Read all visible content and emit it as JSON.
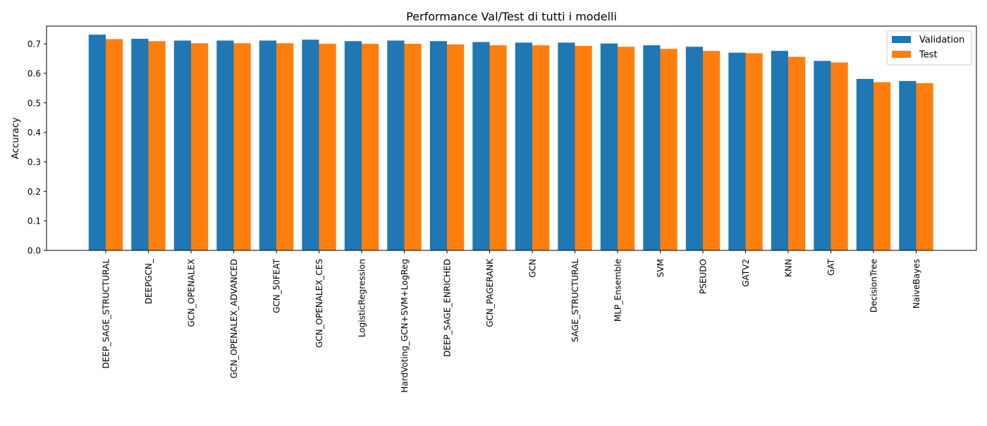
{
  "chart_data": {
    "type": "bar",
    "title": "Performance Val/Test di tutti i modelli",
    "xlabel": "",
    "ylabel": "Accuracy",
    "ylim": [
      0,
      0.76
    ],
    "yticks": [
      "0.0",
      "0.1",
      "0.2",
      "0.3",
      "0.4",
      "0.5",
      "0.6",
      "0.7"
    ],
    "grid": false,
    "legend_position": "top-right",
    "categories": [
      "DEEP_SAGE_STRUCTURAL",
      "DEEPGCN_",
      "GCN_OPENALEX",
      "GCN_OPENALEX_ADVANCED",
      "GCN_50FEAT",
      "GCN_OPENALEX_CES",
      "LogisticRegression",
      "HardVoting_GCN+SVM+LogReg",
      "DEEP_SAGE_ENRICHED",
      "GCN_PAGERANK",
      "GCN",
      "SAGE_STRUCTURAL",
      "MLP_Ensemble",
      "SVM",
      "PSEUDO",
      "GATV2",
      "KNN",
      "GAT",
      "DecisionTree",
      "NaiveBayes"
    ],
    "series": [
      {
        "name": "Validation",
        "color": "#1f77b4",
        "values": [
          0.731,
          0.717,
          0.711,
          0.711,
          0.711,
          0.714,
          0.709,
          0.711,
          0.709,
          0.706,
          0.704,
          0.704,
          0.701,
          0.695,
          0.69,
          0.67,
          0.676,
          0.642,
          0.581,
          0.574
        ]
      },
      {
        "name": "Test",
        "color": "#ff7f0e",
        "values": [
          0.716,
          0.709,
          0.702,
          0.702,
          0.702,
          0.7,
          0.7,
          0.7,
          0.698,
          0.695,
          0.695,
          0.693,
          0.69,
          0.683,
          0.676,
          0.668,
          0.656,
          0.637,
          0.57,
          0.567
        ]
      }
    ]
  }
}
